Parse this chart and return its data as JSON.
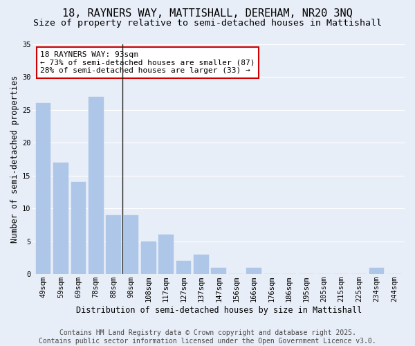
{
  "title1": "18, RAYNERS WAY, MATTISHALL, DEREHAM, NR20 3NQ",
  "title2": "Size of property relative to semi-detached houses in Mattishall",
  "xlabel": "Distribution of semi-detached houses by size in Mattishall",
  "ylabel": "Number of semi-detached properties",
  "categories": [
    "49sqm",
    "59sqm",
    "69sqm",
    "78sqm",
    "88sqm",
    "98sqm",
    "108sqm",
    "117sqm",
    "127sqm",
    "137sqm",
    "147sqm",
    "156sqm",
    "166sqm",
    "176sqm",
    "186sqm",
    "195sqm",
    "205sqm",
    "215sqm",
    "225sqm",
    "234sqm",
    "244sqm"
  ],
  "values": [
    26,
    17,
    14,
    27,
    9,
    9,
    5,
    6,
    2,
    3,
    1,
    0,
    1,
    0,
    0,
    0,
    0,
    0,
    0,
    1,
    0
  ],
  "bar_color": "#aec6e8",
  "bar_edge_color": "#aec6e8",
  "annotation_text": "18 RAYNERS WAY: 93sqm\n← 73% of semi-detached houses are smaller (87)\n28% of semi-detached houses are larger (33) →",
  "annotation_box_facecolor": "#ffffff",
  "annotation_box_edgecolor": "#cc0000",
  "vertical_line_color": "#222222",
  "background_color": "#e8eef8",
  "plot_bg_color": "#e8eef8",
  "grid_color": "#ffffff",
  "ylim": [
    0,
    35
  ],
  "yticks": [
    0,
    5,
    10,
    15,
    20,
    25,
    30,
    35
  ],
  "footer1": "Contains HM Land Registry data © Crown copyright and database right 2025.",
  "footer2": "Contains public sector information licensed under the Open Government Licence v3.0.",
  "title_fontsize": 11,
  "subtitle_fontsize": 9.5,
  "axis_label_fontsize": 8.5,
  "tick_fontsize": 7.5,
  "annotation_fontsize": 8,
  "footer_fontsize": 7
}
